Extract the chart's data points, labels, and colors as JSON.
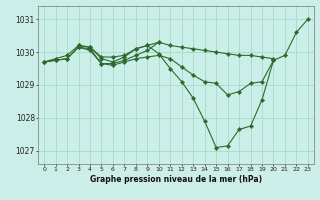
{
  "background_color": "#cceee8",
  "grid_color": "#aaddcc",
  "line_color": "#2d6a2d",
  "marker_color": "#2d6a2d",
  "series": [
    {
      "x": [
        0,
        1,
        2,
        3,
        4,
        5,
        6,
        7,
        8,
        9,
        10,
        11,
        12,
        13,
        14,
        15,
        16,
        17,
        18,
        19,
        20,
        21,
        22,
        23
      ],
      "y": [
        1029.7,
        1029.8,
        1029.9,
        1030.2,
        1030.15,
        1029.85,
        1029.85,
        1029.9,
        1030.1,
        1030.2,
        1029.95,
        1029.5,
        1029.1,
        1028.6,
        1027.9,
        1027.1,
        1027.15,
        1027.65,
        1027.75,
        1028.55,
        1029.75,
        1029.9,
        1030.6,
        1031.0
      ]
    },
    {
      "x": [
        0,
        1,
        2,
        3,
        4,
        5,
        6,
        7,
        8,
        9,
        10,
        11,
        12,
        13,
        14,
        15,
        16,
        17,
        18,
        19,
        20
      ],
      "y": [
        1029.7,
        1029.75,
        1029.8,
        1030.15,
        1030.1,
        1029.65,
        1029.65,
        1029.75,
        1029.9,
        1030.05,
        1030.3,
        1030.2,
        1030.15,
        1030.1,
        1030.05,
        1030.0,
        1029.95,
        1029.9,
        1029.9,
        1029.85,
        1029.8
      ]
    },
    {
      "x": [
        0,
        1,
        2,
        3,
        4,
        5,
        6,
        7,
        8,
        9,
        10,
        11,
        12,
        13,
        14,
        15,
        16,
        17,
        18,
        19,
        20
      ],
      "y": [
        1029.7,
        1029.75,
        1029.8,
        1030.15,
        1030.05,
        1029.65,
        1029.6,
        1029.7,
        1029.8,
        1029.85,
        1029.9,
        1029.8,
        1029.55,
        1029.3,
        1029.1,
        1029.05,
        1028.7,
        1028.8,
        1029.05,
        1029.1,
        1029.75
      ]
    },
    {
      "x": [
        3,
        4,
        5,
        6,
        7,
        8,
        9,
        10
      ],
      "y": [
        1030.2,
        1030.15,
        1029.8,
        1029.7,
        1029.85,
        1030.1,
        1030.2,
        1030.3
      ]
    }
  ],
  "xlabel": "Graphe pression niveau de la mer (hPa)",
  "xticks": [
    0,
    1,
    2,
    3,
    4,
    5,
    6,
    7,
    8,
    9,
    10,
    11,
    12,
    13,
    14,
    15,
    16,
    17,
    18,
    19,
    20,
    21,
    22,
    23
  ],
  "yticks": [
    1027,
    1028,
    1029,
    1030,
    1031
  ],
  "xlim": [
    -0.5,
    23.5
  ],
  "ylim": [
    1026.6,
    1031.4
  ]
}
